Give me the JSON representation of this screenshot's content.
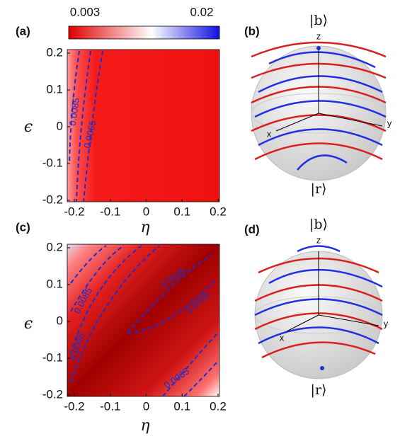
{
  "colorbar": {
    "min_label": "0.003",
    "max_label": "0.02"
  },
  "panels": [
    {
      "label": "(a)",
      "xlabel": "η",
      "ylabel": "ϵ",
      "xticks": [
        "-0.2",
        "-0.1",
        "0",
        "0.1",
        "0.2"
      ],
      "yticks": [
        "0.2",
        "0.1",
        "0",
        "-0.1",
        "-0.2"
      ],
      "contour_labels": [
        "0.0085",
        "0.0065"
      ]
    },
    {
      "label": "(b)",
      "top_state": "|b⟩",
      "bottom_state": "|r⟩",
      "axes": [
        "z",
        "x",
        "y"
      ]
    },
    {
      "label": "(c)",
      "xlabel": "η",
      "ylabel": "ϵ",
      "xticks": [
        "-0.2",
        "-0.1",
        "0",
        "0.1",
        "0.2"
      ],
      "yticks": [
        "0.2",
        "0.1",
        "0",
        "-0.1",
        "-0.2"
      ],
      "contour_labels": [
        "0.0085",
        "0.0065",
        "0.0035",
        "0.0035",
        "0.0065"
      ]
    },
    {
      "label": "(d)",
      "top_state": "|b⟩",
      "bottom_state": "|r⟩",
      "axes": [
        "z",
        "x",
        "y"
      ]
    }
  ]
}
